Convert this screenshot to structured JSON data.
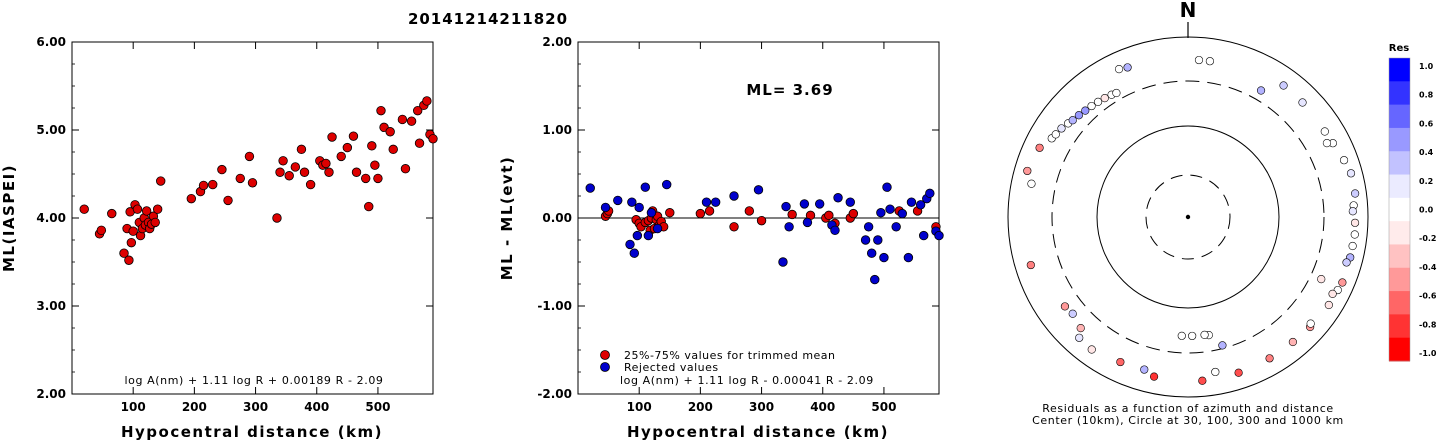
{
  "figure_title": "20141214211820",
  "chart_data": [
    {
      "type": "scatter",
      "name": "magnitude-vs-distance",
      "xlabel": "Hypocentral distance (km)",
      "ylabel": "ML(IASPEI)",
      "xlim": [
        0,
        590
      ],
      "ylim": [
        2.0,
        6.0
      ],
      "x_ticks": [
        100,
        200,
        300,
        400,
        500
      ],
      "x_tick_labels": [
        "100",
        "200",
        "300",
        "400",
        "500"
      ],
      "y_ticks": [
        2.0,
        3.0,
        4.0,
        5.0,
        6.0
      ],
      "y_tick_labels": [
        "2.00",
        "3.00",
        "4.00",
        "5.00",
        "6.00"
      ],
      "formula": "log A(nm) + 1.11 log R + 0.00189 R - 2.09",
      "point_color": "#dd0000",
      "points": [
        [
          20,
          4.1
        ],
        [
          45,
          3.82
        ],
        [
          48,
          3.86
        ],
        [
          65,
          4.05
        ],
        [
          85,
          3.6
        ],
        [
          90,
          3.88
        ],
        [
          93,
          3.52
        ],
        [
          95,
          4.07
        ],
        [
          97,
          3.72
        ],
        [
          100,
          3.85
        ],
        [
          103,
          4.15
        ],
        [
          107,
          4.1
        ],
        [
          110,
          3.95
        ],
        [
          112,
          3.8
        ],
        [
          115,
          3.88
        ],
        [
          118,
          4.0
        ],
        [
          120,
          3.92
        ],
        [
          122,
          4.08
        ],
        [
          125,
          3.95
        ],
        [
          127,
          3.88
        ],
        [
          130,
          3.93
        ],
        [
          133,
          4.02
        ],
        [
          136,
          3.95
        ],
        [
          140,
          4.1
        ],
        [
          145,
          4.42
        ],
        [
          195,
          4.22
        ],
        [
          210,
          4.3
        ],
        [
          215,
          4.37
        ],
        [
          230,
          4.38
        ],
        [
          245,
          4.55
        ],
        [
          255,
          4.2
        ],
        [
          275,
          4.45
        ],
        [
          290,
          4.7
        ],
        [
          295,
          4.4
        ],
        [
          335,
          4.0
        ],
        [
          340,
          4.52
        ],
        [
          345,
          4.65
        ],
        [
          355,
          4.48
        ],
        [
          365,
          4.58
        ],
        [
          375,
          4.78
        ],
        [
          380,
          4.52
        ],
        [
          390,
          4.38
        ],
        [
          405,
          4.65
        ],
        [
          410,
          4.6
        ],
        [
          415,
          4.62
        ],
        [
          420,
          4.52
        ],
        [
          425,
          4.92
        ],
        [
          440,
          4.7
        ],
        [
          450,
          4.8
        ],
        [
          460,
          4.93
        ],
        [
          465,
          4.52
        ],
        [
          480,
          4.45
        ],
        [
          485,
          4.13
        ],
        [
          490,
          4.82
        ],
        [
          495,
          4.6
        ],
        [
          500,
          4.45
        ],
        [
          505,
          5.22
        ],
        [
          510,
          5.03
        ],
        [
          520,
          4.98
        ],
        [
          525,
          4.78
        ],
        [
          540,
          5.12
        ],
        [
          545,
          4.56
        ],
        [
          555,
          5.1
        ],
        [
          565,
          5.22
        ],
        [
          568,
          4.85
        ],
        [
          575,
          5.28
        ],
        [
          580,
          5.33
        ],
        [
          585,
          4.95
        ],
        [
          590,
          4.9
        ]
      ]
    },
    {
      "type": "scatter",
      "name": "residual-vs-distance",
      "xlabel": "Hypocentral distance (km)",
      "ylabel": "ML - ML(evt)",
      "xlim": [
        0,
        590
      ],
      "ylim": [
        -2.0,
        2.0
      ],
      "x_ticks": [
        100,
        200,
        300,
        400,
        500
      ],
      "x_tick_labels": [
        "100",
        "200",
        "300",
        "400",
        "500"
      ],
      "y_ticks": [
        -2.0,
        -1.0,
        0.0,
        1.0,
        2.0
      ],
      "y_tick_labels": [
        "-2.00",
        "-1.00",
        "0.00",
        "1.00",
        "2.00"
      ],
      "ml_text": "ML= 3.69",
      "formula": "log A(nm) + 1.11 log R - 0.00041 R - 2.09",
      "legend": [
        {
          "label": "25%-75% values for trimmed mean",
          "color": "#dd0000"
        },
        {
          "label": "Rejected values",
          "color": "#0000cc"
        }
      ],
      "series": [
        {
          "name": "25%-75% values for trimmed mean",
          "color": "#dd0000",
          "points": [
            [
              45,
              0.02
            ],
            [
              48,
              0.05
            ],
            [
              50,
              0.08
            ],
            [
              95,
              -0.02
            ],
            [
              100,
              -0.06
            ],
            [
              103,
              -0.1
            ],
            [
              110,
              -0.05
            ],
            [
              115,
              -0.03
            ],
            [
              118,
              -0.14
            ],
            [
              120,
              0.0
            ],
            [
              122,
              0.08
            ],
            [
              125,
              -0.12
            ],
            [
              128,
              -0.02
            ],
            [
              130,
              0.02
            ],
            [
              133,
              -0.08
            ],
            [
              136,
              -0.04
            ],
            [
              140,
              -0.1
            ],
            [
              150,
              0.06
            ],
            [
              200,
              0.05
            ],
            [
              215,
              0.08
            ],
            [
              255,
              -0.1
            ],
            [
              280,
              0.08
            ],
            [
              300,
              -0.03
            ],
            [
              350,
              0.04
            ],
            [
              380,
              0.03
            ],
            [
              405,
              0.0
            ],
            [
              410,
              0.03
            ],
            [
              420,
              -0.06
            ],
            [
              445,
              0.0
            ],
            [
              450,
              0.05
            ],
            [
              525,
              0.08
            ],
            [
              555,
              0.08
            ],
            [
              585,
              -0.1
            ]
          ]
        },
        {
          "name": "Rejected values",
          "color": "#0000cc",
          "points": [
            [
              20,
              0.34
            ],
            [
              45,
              0.12
            ],
            [
              65,
              0.2
            ],
            [
              85,
              -0.3
            ],
            [
              88,
              0.18
            ],
            [
              92,
              -0.4
            ],
            [
              97,
              -0.2
            ],
            [
              100,
              0.12
            ],
            [
              110,
              0.35
            ],
            [
              115,
              -0.2
            ],
            [
              120,
              0.06
            ],
            [
              130,
              -0.12
            ],
            [
              145,
              0.38
            ],
            [
              210,
              0.18
            ],
            [
              225,
              0.18
            ],
            [
              255,
              0.25
            ],
            [
              295,
              0.32
            ],
            [
              335,
              -0.5
            ],
            [
              340,
              0.13
            ],
            [
              345,
              -0.1
            ],
            [
              370,
              0.16
            ],
            [
              375,
              -0.05
            ],
            [
              395,
              0.16
            ],
            [
              415,
              -0.08
            ],
            [
              420,
              -0.14
            ],
            [
              425,
              0.23
            ],
            [
              445,
              0.18
            ],
            [
              470,
              -0.25
            ],
            [
              475,
              -0.1
            ],
            [
              480,
              -0.4
            ],
            [
              485,
              -0.7
            ],
            [
              490,
              -0.25
            ],
            [
              495,
              0.06
            ],
            [
              500,
              -0.45
            ],
            [
              505,
              0.35
            ],
            [
              510,
              0.1
            ],
            [
              520,
              -0.1
            ],
            [
              530,
              0.05
            ],
            [
              540,
              -0.45
            ],
            [
              545,
              0.18
            ],
            [
              560,
              0.15
            ],
            [
              565,
              -0.2
            ],
            [
              570,
              0.22
            ],
            [
              575,
              0.28
            ],
            [
              585,
              -0.15
            ],
            [
              590,
              -0.2
            ]
          ]
        }
      ]
    },
    {
      "type": "scatter",
      "name": "residuals-azimuth-distance",
      "north_label": "N",
      "caption_line1": "Residuals as a function of azimuth and distance",
      "caption_line2": "Center (10km), Circle at 30, 100, 300 and 1000 km",
      "colorbar": {
        "title": "Res",
        "max": 1.0,
        "min": -1.0,
        "tick_labels": [
          "1.0",
          "0.8",
          "0.6",
          "0.4",
          "0.2",
          "0.0",
          "-0.2",
          "-0.4",
          "-0.6",
          "-0.8",
          "-1.0"
        ],
        "colors": [
          "#0000ff",
          "#3333ff",
          "#6666ff",
          "#9999ff",
          "#c2c2ff",
          "#ebebff",
          "#ffffff",
          "#ffebeb",
          "#ffc2c2",
          "#ff9999",
          "#ff6666",
          "#ff3333",
          "#ff0000"
        ]
      },
      "rings_km": [
        30,
        100,
        300,
        1000
      ],
      "points": [
        {
          "az": 338,
          "dist": 620,
          "res": 0.3
        },
        {
          "az": 335,
          "dist": 650,
          "res": 0.0
        },
        {
          "az": 4,
          "dist": 560,
          "res": 0.0
        },
        {
          "az": 8,
          "dist": 560,
          "res": 0.0
        },
        {
          "az": 36,
          "dist": 640,
          "res": 0.2
        },
        {
          "az": 45,
          "dist": 630,
          "res": 0.1
        },
        {
          "az": 58,
          "dist": 620,
          "res": 0.0
        },
        {
          "az": 63,
          "dist": 640,
          "res": 0.0
        },
        {
          "az": 62,
          "dist": 560,
          "res": 0.0
        },
        {
          "az": 70,
          "dist": 700,
          "res": 0.0
        },
        {
          "az": 75,
          "dist": 750,
          "res": 0.1
        },
        {
          "az": 82,
          "dist": 750,
          "res": 0.2
        },
        {
          "az": 86,
          "dist": 700,
          "res": 0.0
        },
        {
          "az": 88,
          "dist": 680,
          "res": 0.1
        },
        {
          "az": 92,
          "dist": 720,
          "res": -0.1
        },
        {
          "az": 96,
          "dist": 730,
          "res": 0.0
        },
        {
          "az": 100,
          "dist": 720,
          "res": 0.0
        },
        {
          "az": 104,
          "dist": 720,
          "res": 0.3
        },
        {
          "az": 106,
          "dist": 680,
          "res": 0.2
        },
        {
          "az": 113,
          "dist": 730,
          "res": -0.4
        },
        {
          "az": 116,
          "dist": 710,
          "res": 0.0
        },
        {
          "az": 118,
          "dist": 660,
          "res": -0.1
        },
        {
          "az": 122,
          "dist": 700,
          "res": -0.1
        },
        {
          "az": 132,
          "dist": 670,
          "res": -0.4
        },
        {
          "az": 131,
          "dist": 640,
          "res": 0.0
        },
        {
          "az": 140,
          "dist": 650,
          "res": -0.3
        },
        {
          "az": 150,
          "dist": 650,
          "res": -0.5
        },
        {
          "az": 162,
          "dist": 660,
          "res": -0.7
        },
        {
          "az": 175,
          "dist": 670,
          "res": -0.7
        },
        {
          "az": 170,
          "dist": 560,
          "res": 0.0
        },
        {
          "az": 192,
          "dist": 650,
          "res": -0.8
        },
        {
          "az": 196,
          "dist": 580,
          "res": 0.3
        },
        {
          "az": 205,
          "dist": 600,
          "res": -0.6
        },
        {
          "az": 216,
          "dist": 660,
          "res": -0.1
        },
        {
          "az": 222,
          "dist": 640,
          "res": 0.1
        },
        {
          "az": 224,
          "dist": 520,
          "res": -0.3
        },
        {
          "az": 230,
          "dist": 470,
          "res": 0.2
        },
        {
          "az": 234,
          "dist": 490,
          "res": -0.4
        },
        {
          "az": 253,
          "dist": 670,
          "res": -0.5
        },
        {
          "az": 286,
          "dist": 720,
          "res": -0.4
        },
        {
          "az": 282,
          "dist": 600,
          "res": 0.0
        },
        {
          "az": 300,
          "dist": 560,
          "res": 0.0
        },
        {
          "az": 302,
          "dist": 540,
          "res": 0.0
        },
        {
          "az": 305,
          "dist": 520,
          "res": 0.1
        },
        {
          "az": 308,
          "dist": 490,
          "res": 0.0
        },
        {
          "az": 310,
          "dist": 470,
          "res": 0.3
        },
        {
          "az": 313,
          "dist": 455,
          "res": 0.4
        },
        {
          "az": 316,
          "dist": 440,
          "res": 0.4
        },
        {
          "az": 319,
          "dist": 430,
          "res": 0.0
        },
        {
          "az": 322,
          "dist": 420,
          "res": 0.0
        },
        {
          "az": 325,
          "dist": 410,
          "res": -0.1
        },
        {
          "az": 328,
          "dist": 400,
          "res": 0.0
        },
        {
          "az": 330,
          "dist": 390,
          "res": 0.0
        },
        {
          "az": 295,
          "dist": 660,
          "res": -0.5
        },
        {
          "az": 30,
          "dist": 420,
          "res": 0.3
        },
        {
          "az": 165,
          "dist": 300,
          "res": 0.3
        },
        {
          "az": 170,
          "dist": 215,
          "res": 0.0
        },
        {
          "az": 172,
          "dist": 210,
          "res": 0.0
        },
        {
          "az": 178,
          "dist": 210,
          "res": 0.0
        },
        {
          "az": 183,
          "dist": 210,
          "res": 0.0
        },
        {
          "az": 115,
          "dist": 430,
          "res": -0.1
        }
      ]
    }
  ]
}
